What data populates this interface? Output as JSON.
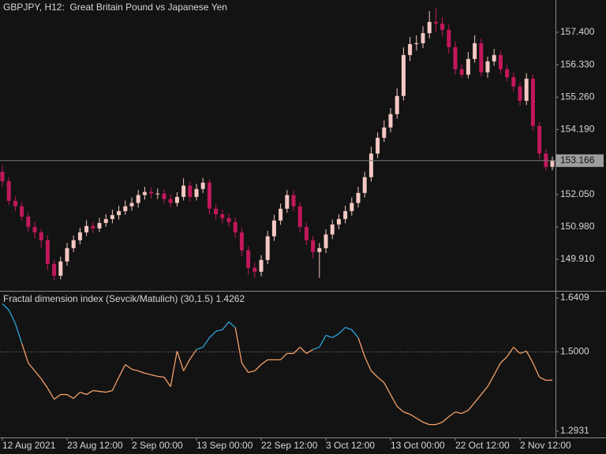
{
  "chart_data": [
    {
      "type": "candlestick",
      "title": "GBPJPY, H12:  Great Britain Pound vs Japanese Yen",
      "categories": [
        "12 Aug 2021",
        null,
        null,
        null,
        null,
        null,
        null,
        null,
        null,
        null,
        "23 Aug 12:00",
        null,
        null,
        null,
        null,
        null,
        null,
        null,
        null,
        null,
        "2 Sep 00:00",
        null,
        null,
        null,
        null,
        null,
        null,
        null,
        null,
        null,
        "13 Sep 00:00",
        null,
        null,
        null,
        null,
        null,
        null,
        null,
        null,
        null,
        "22 Sep 12:00",
        null,
        null,
        null,
        null,
        null,
        null,
        null,
        null,
        null,
        "3 Oct 12:00",
        null,
        null,
        null,
        null,
        null,
        null,
        null,
        null,
        null,
        "13 Oct 00:00",
        null,
        null,
        null,
        null,
        null,
        null,
        null,
        null,
        null,
        "22 Oct 12:00",
        null,
        null,
        null,
        null,
        null,
        null,
        null,
        null,
        null,
        "2 Nov 12:00",
        null,
        null,
        null,
        null,
        null
      ],
      "open": [
        152.8,
        152.49,
        151.84,
        151.66,
        151.32,
        150.98,
        150.8,
        150.54,
        149.76,
        149.37,
        149.84,
        150.28,
        150.54,
        150.8,
        151.01,
        150.93,
        151.11,
        151.24,
        151.37,
        151.5,
        151.66,
        151.77,
        152.03,
        152.13,
        152.08,
        152.08,
        151.9,
        151.77,
        151.97,
        152.34,
        151.97,
        152.23,
        152.44,
        151.58,
        151.4,
        151.27,
        151.14,
        150.8,
        150.21,
        149.63,
        149.5,
        149.89,
        150.67,
        151.19,
        151.58,
        152.03,
        151.66,
        150.98,
        150.54,
        150.15,
        150.28,
        150.73,
        151.06,
        151.24,
        151.5,
        151.77,
        152.1,
        152.62,
        153.4,
        153.92,
        154.26,
        154.7,
        155.3,
        156.65,
        157.01,
        157.04,
        157.37,
        157.74,
        157.69,
        157.48,
        156.91,
        156.18,
        156.0,
        156.52,
        157.04,
        156.08,
        156.44,
        156.65,
        156.18,
        155.92,
        155.61,
        155.14,
        155.87,
        154.31,
        153.4,
        152.96
      ],
      "high": [
        153.02,
        152.62,
        151.98,
        151.8,
        151.45,
        151.15,
        150.92,
        150.7,
        149.9,
        150.0,
        150.45,
        150.7,
        150.95,
        151.2,
        151.15,
        151.28,
        151.4,
        151.55,
        151.68,
        151.85,
        151.95,
        152.2,
        152.3,
        152.28,
        152.25,
        152.22,
        152.05,
        152.12,
        152.58,
        152.48,
        152.4,
        152.6,
        152.55,
        151.72,
        151.55,
        151.42,
        151.28,
        150.95,
        150.35,
        149.8,
        150.05,
        150.85,
        151.38,
        151.75,
        152.2,
        152.18,
        151.8,
        151.12,
        150.68,
        150.45,
        150.9,
        151.22,
        151.4,
        151.68,
        151.95,
        152.3,
        152.8,
        153.62,
        154.1,
        154.5,
        154.9,
        155.55,
        156.9,
        157.25,
        157.3,
        157.6,
        158.1,
        158.2,
        157.9,
        157.65,
        157.1,
        156.35,
        156.75,
        157.3,
        157.2,
        156.6,
        156.85,
        156.8,
        156.32,
        156.08,
        155.75,
        156.05,
        156.0,
        154.45,
        153.55,
        153.3
      ],
      "low": [
        152.3,
        151.7,
        151.5,
        151.18,
        150.82,
        150.6,
        150.3,
        149.55,
        149.22,
        149.25,
        149.7,
        150.15,
        150.4,
        150.68,
        150.78,
        150.82,
        150.98,
        151.1,
        151.22,
        151.38,
        151.52,
        151.62,
        151.88,
        151.92,
        151.9,
        151.75,
        151.62,
        151.65,
        151.85,
        151.82,
        151.85,
        152.1,
        151.4,
        151.22,
        151.1,
        150.98,
        150.62,
        150.0,
        149.4,
        149.3,
        149.35,
        149.75,
        150.52,
        151.05,
        151.45,
        151.5,
        150.8,
        150.38,
        149.95,
        149.3,
        150.12,
        150.58,
        150.9,
        151.1,
        151.35,
        151.62,
        151.95,
        152.48,
        153.25,
        153.78,
        154.1,
        154.55,
        155.15,
        156.45,
        156.8,
        156.88,
        157.2,
        157.4,
        157.25,
        156.7,
        156.0,
        155.9,
        155.88,
        156.4,
        155.95,
        155.9,
        156.3,
        156.02,
        155.78,
        155.45,
        154.98,
        155.0,
        154.15,
        153.22,
        152.82,
        152.85
      ],
      "close": [
        152.49,
        151.84,
        151.66,
        151.32,
        150.98,
        150.8,
        150.54,
        149.76,
        149.37,
        149.84,
        150.28,
        150.54,
        150.8,
        151.01,
        150.93,
        151.11,
        151.24,
        151.37,
        151.5,
        151.66,
        151.77,
        152.03,
        152.13,
        152.08,
        152.08,
        151.9,
        151.77,
        151.97,
        152.34,
        151.97,
        152.23,
        152.44,
        151.58,
        151.4,
        151.27,
        151.14,
        150.8,
        150.21,
        149.63,
        149.5,
        149.89,
        150.67,
        151.19,
        151.58,
        152.03,
        151.66,
        150.98,
        150.54,
        150.15,
        150.28,
        150.73,
        151.06,
        151.24,
        151.5,
        151.77,
        152.1,
        152.62,
        153.4,
        153.92,
        154.26,
        154.7,
        155.3,
        156.65,
        157.01,
        157.04,
        157.37,
        157.74,
        157.69,
        157.48,
        156.91,
        156.18,
        156.0,
        156.52,
        157.04,
        156.08,
        156.44,
        156.65,
        156.18,
        155.92,
        155.61,
        155.14,
        155.87,
        154.31,
        153.4,
        152.96,
        153.166
      ],
      "up_color": "#f5c8c3",
      "down_color": "#c2185b",
      "ylim": [
        148.897,
        158.465
      ],
      "yticks": [
        {
          "value": 157.4,
          "label": "157.400"
        },
        {
          "value": 156.33,
          "label": "156.330"
        },
        {
          "value": 155.26,
          "label": "155.260"
        },
        {
          "value": 154.19,
          "label": "154.190"
        },
        {
          "value": 152.05,
          "label": "152.050"
        },
        {
          "value": 150.98,
          "label": "150.980"
        },
        {
          "value": 149.91,
          "label": "149.910"
        }
      ],
      "last_price_line": true
    },
    {
      "type": "line",
      "title": "Fractal dimension index (Sevcik/Matulich) (30,1.5)",
      "values": [
        1.6258,
        1.6093,
        1.5742,
        1.5227,
        1.4711,
        1.4505,
        1.4299,
        1.4052,
        1.3763,
        1.3887,
        1.3887,
        1.3784,
        1.3948,
        1.3887,
        1.399,
        1.3969,
        1.3948,
        1.399,
        1.434,
        1.467,
        1.4546,
        1.4505,
        1.4443,
        1.4402,
        1.4361,
        1.434,
        1.4093,
        1.5021,
        1.4505,
        1.4814,
        1.5062,
        1.5124,
        1.5371,
        1.5536,
        1.5577,
        1.5784,
        1.5639,
        1.4711,
        1.4464,
        1.4505,
        1.467,
        1.4794,
        1.4794,
        1.4794,
        1.4959,
        1.4959,
        1.5124,
        1.4959,
        1.5062,
        1.5124,
        1.5433,
        1.5371,
        1.5474,
        1.5639,
        1.5577,
        1.5371,
        1.4876,
        1.4505,
        1.434,
        1.4196,
        1.3887,
        1.3577,
        1.3433,
        1.3371,
        1.3268,
        1.3165,
        1.3103,
        1.3103,
        1.3165,
        1.3309,
        1.3433,
        1.3392,
        1.3474,
        1.368,
        1.3887,
        1.4093,
        1.4402,
        1.4711,
        1.4876,
        1.5124,
        1.4959,
        1.5021,
        1.4711,
        1.434,
        1.4258,
        1.4262
      ],
      "level": 1.5,
      "above_color": "#2ba6e0",
      "below_color": "#f3a06a",
      "ylim": [
        1.2766,
        1.6553
      ],
      "yticks": [
        1.6409,
        {
          "value": 1.5,
          "label": "1.5000"
        },
        1.2931
      ]
    }
  ]
}
